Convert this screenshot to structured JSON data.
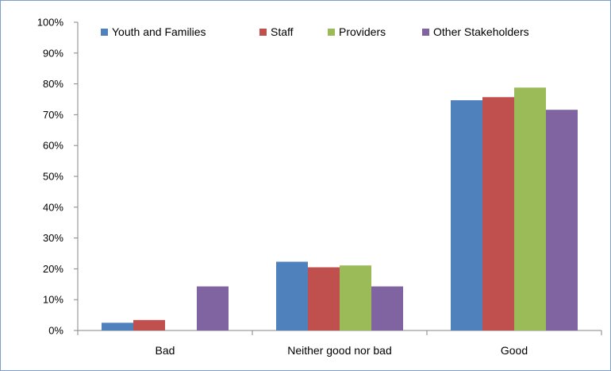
{
  "chart_data": {
    "type": "bar",
    "categories": [
      "Bad",
      "Neither good nor bad",
      "Good"
    ],
    "series": [
      {
        "name": "Youth and Families",
        "color": "#4f81bd",
        "values": [
          2.5,
          22.3,
          74.7
        ]
      },
      {
        "name": "Staff",
        "color": "#c0504d",
        "values": [
          3.4,
          20.5,
          75.7
        ]
      },
      {
        "name": "Providers",
        "color": "#9bbb59",
        "values": [
          0,
          21.1,
          78.8
        ]
      },
      {
        "name": "Other Stakeholders",
        "color": "#8064a2",
        "values": [
          14.3,
          14.3,
          71.6
        ]
      }
    ],
    "ylim": [
      0,
      100
    ],
    "yticks": [
      0,
      10,
      20,
      30,
      40,
      50,
      60,
      70,
      80,
      90,
      100
    ],
    "ytick_labels": [
      "0%",
      "10%",
      "20%",
      "30%",
      "40%",
      "50%",
      "60%",
      "70%",
      "80%",
      "90%",
      "100%"
    ],
    "grid": false,
    "legend_position": "top"
  }
}
